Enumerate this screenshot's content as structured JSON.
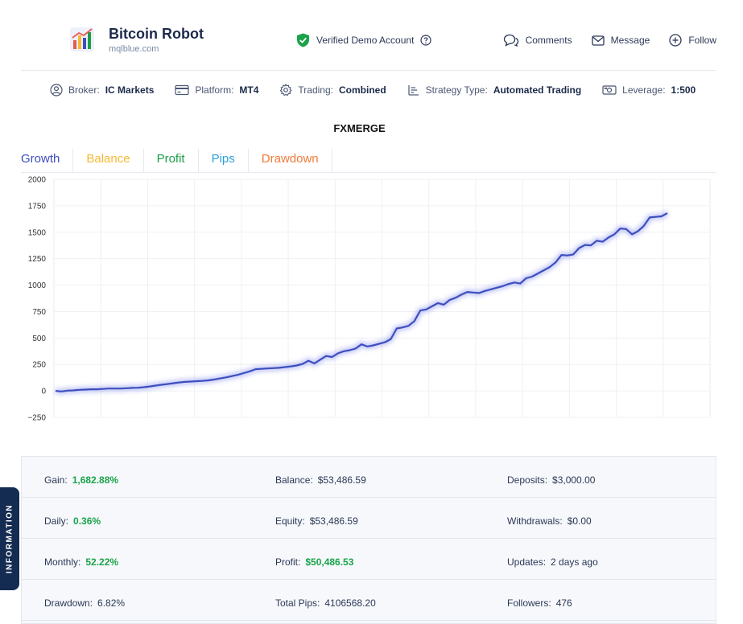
{
  "header": {
    "title": "Bitcoin Robot",
    "subtitle": "mqlblue.com",
    "verified": "Verified Demo Account",
    "actions": [
      "Comments",
      "Message",
      "Follow"
    ]
  },
  "infobar": [
    {
      "label": "Broker:",
      "value": "IC Markets",
      "icon": "user-circle-icon"
    },
    {
      "label": "Platform:",
      "value": "MT4",
      "icon": "card-icon"
    },
    {
      "label": "Trading:",
      "value": "Combined",
      "icon": "gear-icon"
    },
    {
      "label": "Strategy Type:",
      "value": "Automated Trading",
      "icon": "list-icon"
    },
    {
      "label": "Leverage:",
      "value": "1:500",
      "icon": "money-icon"
    }
  ],
  "chart_title": "FXMERGE",
  "tabs": [
    {
      "label": "Growth",
      "color": "#3d4fbf"
    },
    {
      "label": "Balance",
      "color": "#f5b935"
    },
    {
      "label": "Profit",
      "color": "#1a9e48"
    },
    {
      "label": "Pips",
      "color": "#2d9fd8"
    },
    {
      "label": "Drawdown",
      "color": "#f07b3a"
    }
  ],
  "chart_data": {
    "type": "line",
    "title": "",
    "xlabel": "",
    "ylabel": "",
    "ylim": [
      -250,
      2000
    ],
    "yticks": [
      -250,
      0,
      250,
      500,
      750,
      1000,
      1250,
      1500,
      1750,
      2000
    ],
    "grid": true,
    "series": [
      {
        "color": "#3d4fbf",
        "values": [
          0,
          -5,
          2,
          5,
          10,
          12,
          15,
          15,
          18,
          22,
          22,
          22,
          25,
          28,
          30,
          35,
          42,
          50,
          58,
          65,
          72,
          80,
          85,
          88,
          92,
          95,
          100,
          108,
          118,
          128,
          140,
          152,
          168,
          185,
          205,
          208,
          212,
          215,
          218,
          225,
          232,
          240,
          255,
          285,
          260,
          295,
          330,
          320,
          355,
          375,
          385,
          400,
          440,
          420,
          430,
          445,
          460,
          490,
          590,
          600,
          615,
          660,
          760,
          770,
          800,
          830,
          815,
          860,
          880,
          910,
          935,
          930,
          925,
          945,
          960,
          975,
          990,
          1010,
          1025,
          1015,
          1065,
          1080,
          1110,
          1140,
          1170,
          1215,
          1285,
          1280,
          1290,
          1350,
          1380,
          1375,
          1420,
          1410,
          1450,
          1480,
          1535,
          1530,
          1480,
          1510,
          1560,
          1640,
          1645,
          1650,
          1680
        ]
      }
    ]
  },
  "info_side_label": "INFORMATION",
  "info": [
    [
      {
        "label": "Gain:",
        "value": "1,682.88%",
        "green": true
      },
      {
        "label": "Balance:",
        "value": "$53,486.59"
      },
      {
        "label": "Deposits:",
        "value": "$3,000.00"
      }
    ],
    [
      {
        "label": "Daily:",
        "value": "0.36%",
        "green": true
      },
      {
        "label": "Equity:",
        "value": "$53,486.59"
      },
      {
        "label": "Withdrawals:",
        "value": "$0.00"
      }
    ],
    [
      {
        "label": "Monthly:",
        "value": "52.22%",
        "green": true
      },
      {
        "label": "Profit:",
        "value": "$50,486.53",
        "green": true
      },
      {
        "label": "Updates:",
        "value": "2 days ago"
      }
    ],
    [
      {
        "label": "Drawdown:",
        "value": "6.82%"
      },
      {
        "label": "Total Pips:",
        "value": "4106568.20"
      },
      {
        "label": "Followers:",
        "value": "476"
      }
    ]
  ]
}
